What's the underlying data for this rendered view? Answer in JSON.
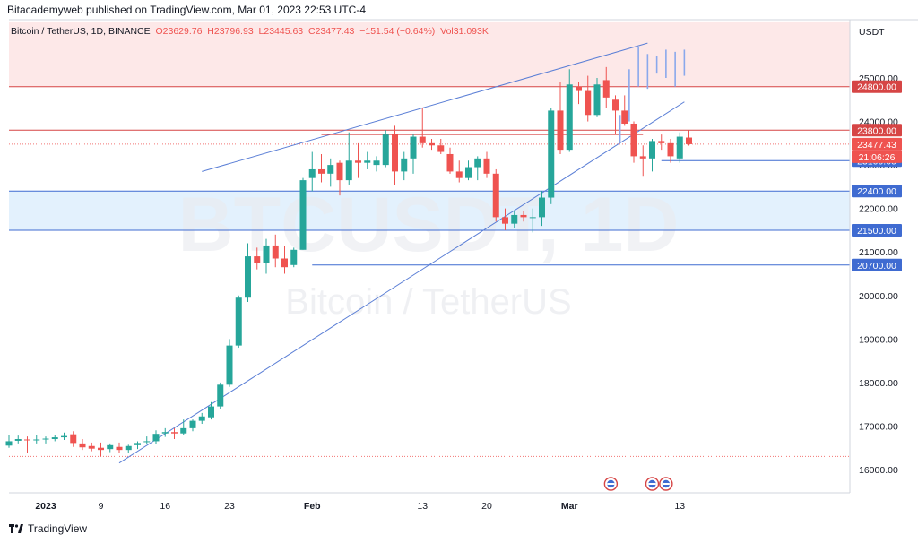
{
  "header": {
    "published_by": "Bitacademyweb published on TradingView.com, Mar 01, 2023 22:53 UTC-4"
  },
  "legend": {
    "symbol": "Bitcoin / TetherUS, 1D, BINANCE",
    "open": "O23629.76",
    "high": "H23796.93",
    "low": "L23445.63",
    "close": "C23477.43",
    "change": "−151.54 (−0.64%)",
    "volume": "Vol31.093K"
  },
  "watermark": {
    "ticker": "BTCUSDT, 1D",
    "name": "Bitcoin / TetherUS"
  },
  "footer": {
    "brand": "TradingView"
  },
  "colors": {
    "up": "#26a69a",
    "down": "#ef5350",
    "trendline": "#5b7fd6",
    "level_red": "#d64545",
    "level_blue": "#3f6bd1",
    "zone_red": "#fde8e8",
    "zone_blue": "#e3f1fd",
    "projection": "#8aa8ec"
  },
  "chart_data": {
    "type": "candlestick",
    "timeframe": "1D",
    "y_axis_unit": "USDT",
    "y_ticks": [
      16000,
      17000,
      18000,
      19000,
      20000,
      21000,
      22000,
      23000,
      24000,
      25000
    ],
    "x_ticks": [
      {
        "label": "2023",
        "day": 4
      },
      {
        "label": "9",
        "day": 10
      },
      {
        "label": "16",
        "day": 17
      },
      {
        "label": "23",
        "day": 24
      },
      {
        "label": "Feb",
        "day": 33
      },
      {
        "label": "13",
        "day": 45
      },
      {
        "label": "20",
        "day": 52
      },
      {
        "label": "Mar",
        "day": 61
      },
      {
        "label": "13",
        "day": 73
      }
    ],
    "candles": [
      {
        "o": 16550,
        "h": 16800,
        "l": 16500,
        "c": 16650
      },
      {
        "o": 16660,
        "h": 16780,
        "l": 16600,
        "c": 16700
      },
      {
        "o": 16690,
        "h": 16760,
        "l": 16380,
        "c": 16680
      },
      {
        "o": 16680,
        "h": 16800,
        "l": 16600,
        "c": 16690
      },
      {
        "o": 16690,
        "h": 16760,
        "l": 16600,
        "c": 16710
      },
      {
        "o": 16700,
        "h": 16800,
        "l": 16650,
        "c": 16740
      },
      {
        "o": 16740,
        "h": 16850,
        "l": 16680,
        "c": 16770
      },
      {
        "o": 16810,
        "h": 16880,
        "l": 16520,
        "c": 16610
      },
      {
        "o": 16600,
        "h": 16700,
        "l": 16450,
        "c": 16510
      },
      {
        "o": 16540,
        "h": 16620,
        "l": 16420,
        "c": 16480
      },
      {
        "o": 16500,
        "h": 16620,
        "l": 16300,
        "c": 16450
      },
      {
        "o": 16470,
        "h": 16600,
        "l": 16400,
        "c": 16560
      },
      {
        "o": 16520,
        "h": 16620,
        "l": 16380,
        "c": 16450
      },
      {
        "o": 16450,
        "h": 16570,
        "l": 16390,
        "c": 16540
      },
      {
        "o": 16560,
        "h": 16650,
        "l": 16470,
        "c": 16610
      },
      {
        "o": 16640,
        "h": 16760,
        "l": 16580,
        "c": 16650
      },
      {
        "o": 16650,
        "h": 16900,
        "l": 16580,
        "c": 16820
      },
      {
        "o": 16830,
        "h": 16950,
        "l": 16750,
        "c": 16860
      },
      {
        "o": 16860,
        "h": 16950,
        "l": 16700,
        "c": 16830
      },
      {
        "o": 16830,
        "h": 17150,
        "l": 16800,
        "c": 16950
      },
      {
        "o": 16950,
        "h": 17150,
        "l": 16880,
        "c": 17120
      },
      {
        "o": 17120,
        "h": 17300,
        "l": 17050,
        "c": 17220
      },
      {
        "o": 17200,
        "h": 17550,
        "l": 17150,
        "c": 17450
      },
      {
        "o": 17450,
        "h": 18000,
        "l": 17400,
        "c": 17950
      },
      {
        "o": 17950,
        "h": 19000,
        "l": 17900,
        "c": 18850
      },
      {
        "o": 18850,
        "h": 20000,
        "l": 18800,
        "c": 19950
      },
      {
        "o": 19950,
        "h": 21200,
        "l": 19850,
        "c": 20900
      },
      {
        "o": 20900,
        "h": 21100,
        "l": 20600,
        "c": 20750
      },
      {
        "o": 20750,
        "h": 21300,
        "l": 20500,
        "c": 21150
      },
      {
        "o": 21150,
        "h": 21400,
        "l": 20650,
        "c": 20850
      },
      {
        "o": 20850,
        "h": 21150,
        "l": 20500,
        "c": 20650
      },
      {
        "o": 20700,
        "h": 21100,
        "l": 20650,
        "c": 21050
      },
      {
        "o": 21050,
        "h": 22700,
        "l": 21050,
        "c": 22650
      },
      {
        "o": 22700,
        "h": 23300,
        "l": 22400,
        "c": 22900
      },
      {
        "o": 22900,
        "h": 23250,
        "l": 22600,
        "c": 22800
      },
      {
        "o": 22800,
        "h": 23150,
        "l": 22500,
        "c": 23000
      },
      {
        "o": 23050,
        "h": 23100,
        "l": 22300,
        "c": 22650
      },
      {
        "o": 22650,
        "h": 23750,
        "l": 22550,
        "c": 23100
      },
      {
        "o": 23100,
        "h": 23500,
        "l": 22700,
        "c": 23050
      },
      {
        "o": 23050,
        "h": 23300,
        "l": 22900,
        "c": 23100
      },
      {
        "o": 23000,
        "h": 23200,
        "l": 22850,
        "c": 23100
      },
      {
        "o": 23000,
        "h": 23800,
        "l": 22950,
        "c": 23700
      },
      {
        "o": 23700,
        "h": 23900,
        "l": 22550,
        "c": 22850
      },
      {
        "o": 22850,
        "h": 23300,
        "l": 22650,
        "c": 23150
      },
      {
        "o": 23150,
        "h": 23700,
        "l": 22800,
        "c": 23650
      },
      {
        "o": 23650,
        "h": 24300,
        "l": 23400,
        "c": 23500
      },
      {
        "o": 23500,
        "h": 23600,
        "l": 23350,
        "c": 23450
      },
      {
        "o": 23450,
        "h": 23600,
        "l": 23250,
        "c": 23300
      },
      {
        "o": 23250,
        "h": 23400,
        "l": 22800,
        "c": 22850
      },
      {
        "o": 22850,
        "h": 23100,
        "l": 22600,
        "c": 22700
      },
      {
        "o": 22700,
        "h": 23100,
        "l": 22650,
        "c": 22950
      },
      {
        "o": 22950,
        "h": 23200,
        "l": 22650,
        "c": 23150
      },
      {
        "o": 23150,
        "h": 23300,
        "l": 22700,
        "c": 22800
      },
      {
        "o": 22800,
        "h": 22900,
        "l": 21700,
        "c": 21800
      },
      {
        "o": 21800,
        "h": 22000,
        "l": 21500,
        "c": 21650
      },
      {
        "o": 21650,
        "h": 21950,
        "l": 21550,
        "c": 21850
      },
      {
        "o": 21850,
        "h": 21950,
        "l": 21700,
        "c": 21800
      },
      {
        "o": 21800,
        "h": 22000,
        "l": 21450,
        "c": 21800
      },
      {
        "o": 21800,
        "h": 22400,
        "l": 21600,
        "c": 22250
      },
      {
        "o": 22250,
        "h": 24300,
        "l": 22100,
        "c": 24250
      },
      {
        "o": 24250,
        "h": 24900,
        "l": 23250,
        "c": 23350
      },
      {
        "o": 23350,
        "h": 25200,
        "l": 23300,
        "c": 24850
      },
      {
        "o": 24800,
        "h": 24900,
        "l": 24400,
        "c": 24700
      },
      {
        "o": 24700,
        "h": 25050,
        "l": 24000,
        "c": 24150
      },
      {
        "o": 24150,
        "h": 25000,
        "l": 24100,
        "c": 24850
      },
      {
        "o": 24950,
        "h": 25250,
        "l": 24300,
        "c": 24550
      },
      {
        "o": 24500,
        "h": 24600,
        "l": 23700,
        "c": 24250
      },
      {
        "o": 24250,
        "h": 24600,
        "l": 23900,
        "c": 23950
      },
      {
        "o": 23950,
        "h": 24000,
        "l": 23050,
        "c": 23200
      },
      {
        "o": 23200,
        "h": 23450,
        "l": 22750,
        "c": 23150
      },
      {
        "o": 23150,
        "h": 23600,
        "l": 22850,
        "c": 23550
      },
      {
        "o": 23550,
        "h": 23700,
        "l": 23350,
        "c": 23500
      },
      {
        "o": 23500,
        "h": 23600,
        "l": 23050,
        "c": 23200
      },
      {
        "o": 23150,
        "h": 23750,
        "l": 23050,
        "c": 23650
      },
      {
        "o": 23629.76,
        "h": 23796.93,
        "l": 23445.63,
        "c": 23477.43
      }
    ],
    "candle_start_day": 0,
    "projection_bars": [
      {
        "day": 66.5,
        "h": 24150,
        "l": 23500
      },
      {
        "day": 67.5,
        "h": 25200,
        "l": 24000
      },
      {
        "day": 68.5,
        "h": 25700,
        "l": 24800
      },
      {
        "day": 69.5,
        "h": 25550,
        "l": 24750
      },
      {
        "day": 70.5,
        "h": 25500,
        "l": 25100
      },
      {
        "day": 71.5,
        "h": 25650,
        "l": 25000
      },
      {
        "day": 72.5,
        "h": 25600,
        "l": 24800
      },
      {
        "day": 73.5,
        "h": 25650,
        "l": 25050
      }
    ],
    "trendlines": [
      {
        "from": {
          "day": 12,
          "price": 16150
        },
        "to": {
          "day": 73.5,
          "price": 24450
        }
      },
      {
        "from": {
          "day": 21,
          "price": 22850
        },
        "to": {
          "day": 69.5,
          "price": 25800
        }
      },
      {
        "from": {
          "day": 34,
          "price": 23700
        },
        "to": {
          "day": 69,
          "price": 23700
        }
      }
    ],
    "levels": [
      {
        "price": 24800,
        "label": "24800.00",
        "style": "red"
      },
      {
        "price": 23800,
        "label": "23800.00",
        "style": "red"
      },
      {
        "price": 23100,
        "label": "23100.00",
        "style": "blue"
      },
      {
        "price": 22400,
        "label": "22400.00",
        "style": "blue"
      },
      {
        "price": 21500,
        "label": "21500.00",
        "style": "blue"
      },
      {
        "price": 20700,
        "label": "20700.00",
        "style": "blue"
      }
    ],
    "zones": [
      {
        "top": 26300,
        "bottom": 24800,
        "style": "red"
      },
      {
        "top": 22400,
        "bottom": 21500,
        "style": "blue"
      }
    ],
    "dotted_levels": [
      16300,
      23477.43
    ],
    "price_label": {
      "price": 23477.43,
      "text": "23477.43",
      "countdown": "21:06:26"
    }
  }
}
